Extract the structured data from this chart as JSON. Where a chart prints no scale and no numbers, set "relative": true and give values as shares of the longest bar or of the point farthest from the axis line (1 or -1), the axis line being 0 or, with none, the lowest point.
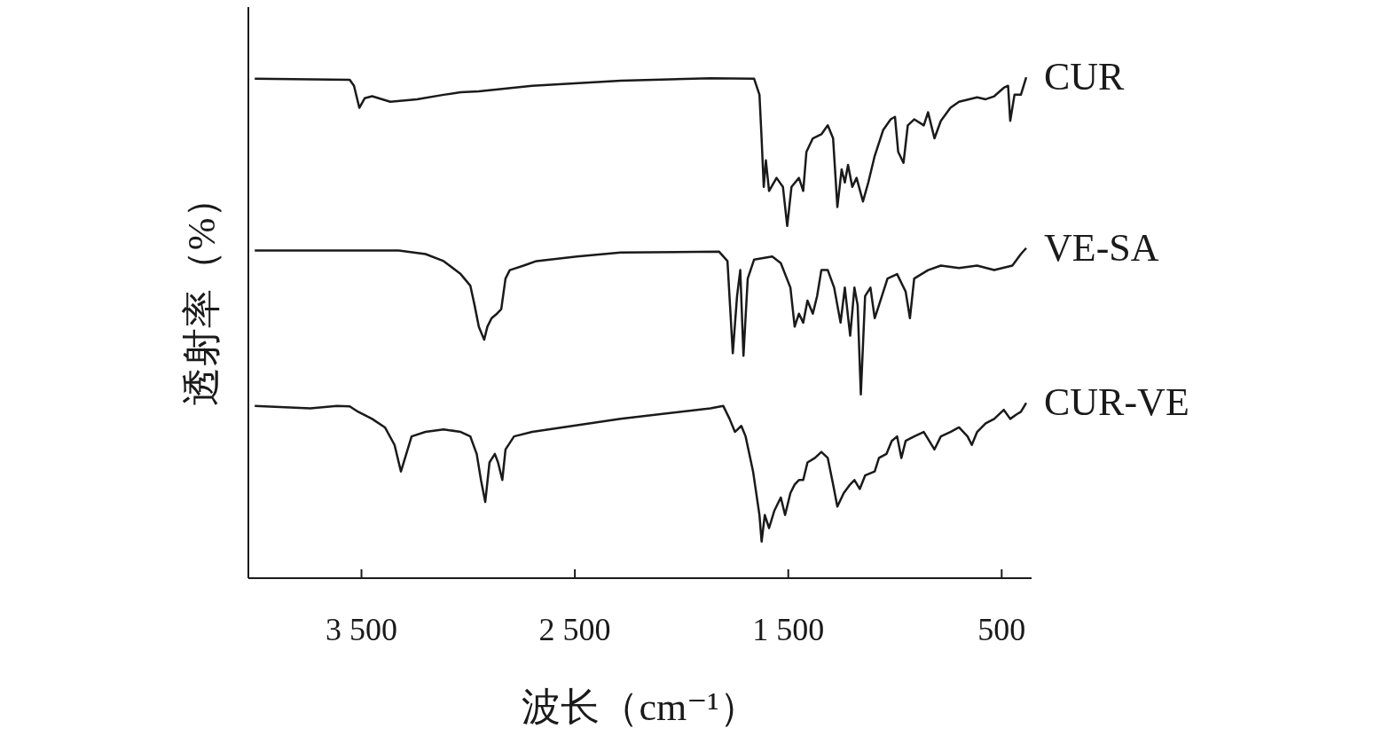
{
  "chart_data": {
    "type": "line",
    "relative": true,
    "xlabel": "波长（cm⁻¹）",
    "ylabel": "透射率（%）",
    "tick_labels": "x",
    "xlim": [
      4030,
      360
    ],
    "xticks": [
      {
        "value": 3500,
        "label": "3 500"
      },
      {
        "value": 2500,
        "label": "2 500"
      },
      {
        "value": 1500,
        "label": "1 500"
      },
      {
        "value": 500,
        "label": "500"
      }
    ],
    "series": [
      {
        "name": "CUR",
        "color": "#1a1a1a",
        "x": [
          4000,
          3555,
          3535,
          3510,
          3485,
          3450,
          3365,
          3240,
          3115,
          3035,
          2950,
          2700,
          2285,
          1865,
          1660,
          1635,
          1625,
          1615,
          1605,
          1590,
          1555,
          1525,
          1505,
          1485,
          1450,
          1430,
          1415,
          1385,
          1345,
          1315,
          1290,
          1270,
          1250,
          1235,
          1220,
          1200,
          1180,
          1150,
          1125,
          1095,
          1055,
          1020,
          1000,
          985,
          960,
          940,
          910,
          865,
          845,
          815,
          785,
          740,
          700,
          615,
          575,
          535,
          490,
          470,
          460,
          440,
          410,
          385
        ],
        "values": [
          0.997,
          0.995,
          0.983,
          0.939,
          0.958,
          0.962,
          0.951,
          0.956,
          0.965,
          0.97,
          0.972,
          0.983,
          0.993,
          0.998,
          0.997,
          0.965,
          0.878,
          0.781,
          0.834,
          0.773,
          0.799,
          0.781,
          0.703,
          0.781,
          0.799,
          0.773,
          0.851,
          0.878,
          0.886,
          0.904,
          0.878,
          0.741,
          0.816,
          0.79,
          0.825,
          0.781,
          0.799,
          0.752,
          0.79,
          0.843,
          0.895,
          0.916,
          0.921,
          0.851,
          0.829,
          0.904,
          0.916,
          0.904,
          0.93,
          0.878,
          0.913,
          0.939,
          0.951,
          0.96,
          0.956,
          0.962,
          0.979,
          0.983,
          0.913,
          0.965,
          0.965,
          1.0
        ]
      },
      {
        "name": "VE-SA",
        "color": "#1a1a1a",
        "x": [
          4000,
          3325,
          3200,
          3115,
          3035,
          2990,
          2970,
          2950,
          2925,
          2910,
          2890,
          2865,
          2845,
          2825,
          2805,
          2740,
          2680,
          2490,
          2285,
          1825,
          1785,
          1760,
          1740,
          1725,
          1710,
          1690,
          1660,
          1575,
          1535,
          1490,
          1470,
          1450,
          1430,
          1410,
          1385,
          1365,
          1345,
          1315,
          1285,
          1255,
          1235,
          1210,
          1190,
          1175,
          1160,
          1140,
          1115,
          1095,
          1075,
          1035,
          990,
          950,
          930,
          910,
          845,
          785,
          700,
          615,
          535,
          450,
          410,
          385
        ],
        "values": [
          0.654,
          0.654,
          0.647,
          0.633,
          0.607,
          0.584,
          0.545,
          0.502,
          0.476,
          0.502,
          0.519,
          0.528,
          0.537,
          0.598,
          0.615,
          0.624,
          0.633,
          0.642,
          0.65,
          0.652,
          0.633,
          0.449,
          0.563,
          0.615,
          0.444,
          0.598,
          0.636,
          0.642,
          0.629,
          0.58,
          0.502,
          0.528,
          0.51,
          0.554,
          0.528,
          0.563,
          0.615,
          0.615,
          0.58,
          0.51,
          0.58,
          0.484,
          0.58,
          0.545,
          0.367,
          0.563,
          0.58,
          0.519,
          0.545,
          0.598,
          0.607,
          0.572,
          0.519,
          0.598,
          0.615,
          0.624,
          0.619,
          0.624,
          0.615,
          0.624,
          0.647,
          0.659
        ]
      },
      {
        "name": "CUR-VE",
        "color": "#1a1a1a",
        "x": [
          4000,
          3740,
          3615,
          3555,
          3515,
          3450,
          3390,
          3345,
          3315,
          3290,
          3265,
          3200,
          3115,
          3035,
          2990,
          2960,
          2940,
          2920,
          2900,
          2875,
          2860,
          2840,
          2825,
          2785,
          2700,
          2285,
          1865,
          1805,
          1775,
          1750,
          1720,
          1700,
          1665,
          1635,
          1625,
          1610,
          1590,
          1565,
          1535,
          1515,
          1490,
          1470,
          1450,
          1430,
          1410,
          1375,
          1345,
          1315,
          1290,
          1270,
          1240,
          1210,
          1190,
          1165,
          1140,
          1095,
          1075,
          1040,
          1015,
          990,
          970,
          950,
          910,
          865,
          815,
          785,
          740,
          700,
          660,
          640,
          615,
          575,
          535,
          490,
          460,
          430,
          410,
          385
        ],
        "values": [
          0.344,
          0.339,
          0.344,
          0.343,
          0.332,
          0.318,
          0.301,
          0.266,
          0.213,
          0.248,
          0.283,
          0.292,
          0.297,
          0.292,
          0.283,
          0.248,
          0.196,
          0.152,
          0.231,
          0.248,
          0.231,
          0.196,
          0.257,
          0.283,
          0.292,
          0.318,
          0.339,
          0.344,
          0.318,
          0.292,
          0.304,
          0.283,
          0.213,
          0.126,
          0.073,
          0.126,
          0.1,
          0.135,
          0.161,
          0.126,
          0.17,
          0.187,
          0.196,
          0.196,
          0.231,
          0.24,
          0.252,
          0.24,
          0.187,
          0.143,
          0.17,
          0.187,
          0.196,
          0.178,
          0.205,
          0.213,
          0.24,
          0.248,
          0.274,
          0.283,
          0.24,
          0.274,
          0.283,
          0.292,
          0.257,
          0.283,
          0.292,
          0.301,
          0.283,
          0.266,
          0.292,
          0.309,
          0.318,
          0.336,
          0.318,
          0.327,
          0.332,
          0.35
        ]
      }
    ]
  }
}
